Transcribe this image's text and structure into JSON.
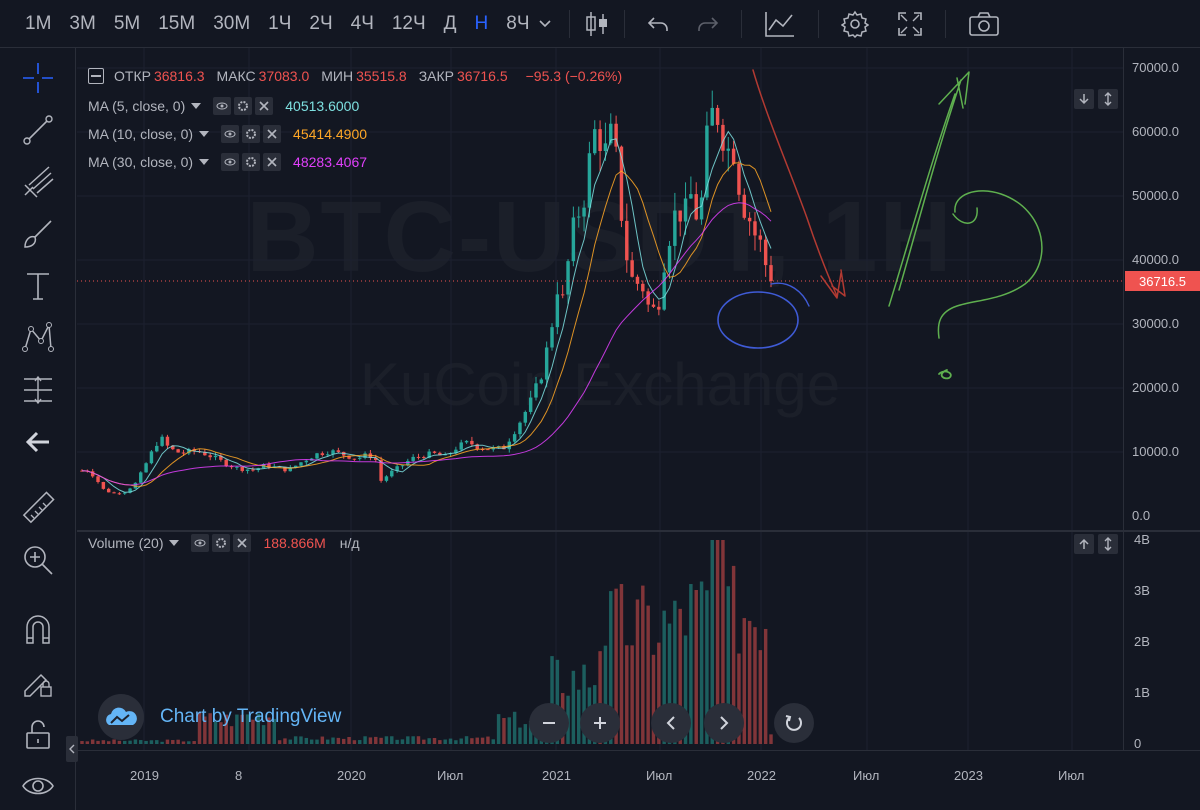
{
  "toolbar": {
    "timeframes": [
      {
        "label": "1М",
        "active": false
      },
      {
        "label": "3М",
        "active": false
      },
      {
        "label": "5М",
        "active": false
      },
      {
        "label": "15М",
        "active": false
      },
      {
        "label": "30М",
        "active": false
      },
      {
        "label": "1Ч",
        "active": false
      },
      {
        "label": "2Ч",
        "active": false
      },
      {
        "label": "4Ч",
        "active": false
      },
      {
        "label": "12Ч",
        "active": false
      },
      {
        "label": "Д",
        "active": false
      },
      {
        "label": "Н",
        "active": true
      },
      {
        "label": "8Ч",
        "active": false
      }
    ]
  },
  "legend": {
    "ohlc": {
      "open_label": "ОТКР",
      "open": "36816.3",
      "high_label": "МАКС",
      "high": "37083.0",
      "low_label": "МИН",
      "low": "35515.8",
      "close_label": "ЗАКР",
      "close": "36716.5",
      "change": "−95.3 (−0.26%)"
    },
    "indicators": [
      {
        "label": "MA (5, close, 0)",
        "value": "40513.6000",
        "color": "#7ee0e0"
      },
      {
        "label": "MA (10, close, 0)",
        "value": "45414.4900",
        "color": "#ffa726"
      },
      {
        "label": "MA (30, close, 0)",
        "value": "48283.4067",
        "color": "#e040fb"
      }
    ],
    "volume": {
      "label": "Volume (20)",
      "value": "188.866M",
      "extra": "н/д"
    }
  },
  "watermark": {
    "symbol": "BTC-USDT, 1H",
    "exchange": "KuCoin Exchange"
  },
  "price_axis": {
    "ticks": [
      "70000.0",
      "60000.0",
      "50000.0",
      "40000.0",
      "30000.0",
      "20000.0",
      "10000.0",
      "0.0"
    ],
    "current_price": "36716.5"
  },
  "volume_axis": {
    "ticks": [
      "4B",
      "3B",
      "2B",
      "1B",
      "0"
    ]
  },
  "time_axis": {
    "ticks": [
      "2019",
      "8",
      "2020",
      "Июл",
      "2021",
      "Июл",
      "2022",
      "Июл",
      "2023",
      "Июл"
    ]
  },
  "branding": {
    "text": "Chart by TradingView"
  },
  "colors": {
    "up": "#26a69a",
    "down": "#ef5350",
    "accent": "#2962ff",
    "background": "#131722"
  },
  "chart_data": {
    "type": "candlestick",
    "symbol": "BTC-USDT",
    "interval": "weekly",
    "y_range": [
      0,
      70000
    ],
    "close_series_approx": [
      {
        "x": "2018-08",
        "y": 7000
      },
      {
        "x": "2018-11",
        "y": 4500
      },
      {
        "x": "2019-01",
        "y": 3500
      },
      {
        "x": "2019-04",
        "y": 5200
      },
      {
        "x": "2019-06",
        "y": 12000
      },
      {
        "x": "2019-09",
        "y": 8300
      },
      {
        "x": "2019-12",
        "y": 7200
      },
      {
        "x": "2020-02",
        "y": 9800
      },
      {
        "x": "2020-03",
        "y": 5000
      },
      {
        "x": "2020-07",
        "y": 9500
      },
      {
        "x": "2020-10",
        "y": 13000
      },
      {
        "x": "2021-01",
        "y": 33000
      },
      {
        "x": "2021-04",
        "y": 63000
      },
      {
        "x": "2021-07",
        "y": 30000
      },
      {
        "x": "2021-09",
        "y": 48000
      },
      {
        "x": "2021-11",
        "y": 67000
      },
      {
        "x": "2022-01",
        "y": 36716.5
      }
    ],
    "ma_last": {
      "MA5": 40513.6,
      "MA10": 45414.49,
      "MA30": 48283.4067
    },
    "volume_y_range": [
      0,
      4000000000
    ],
    "last_volume": 188866000
  }
}
